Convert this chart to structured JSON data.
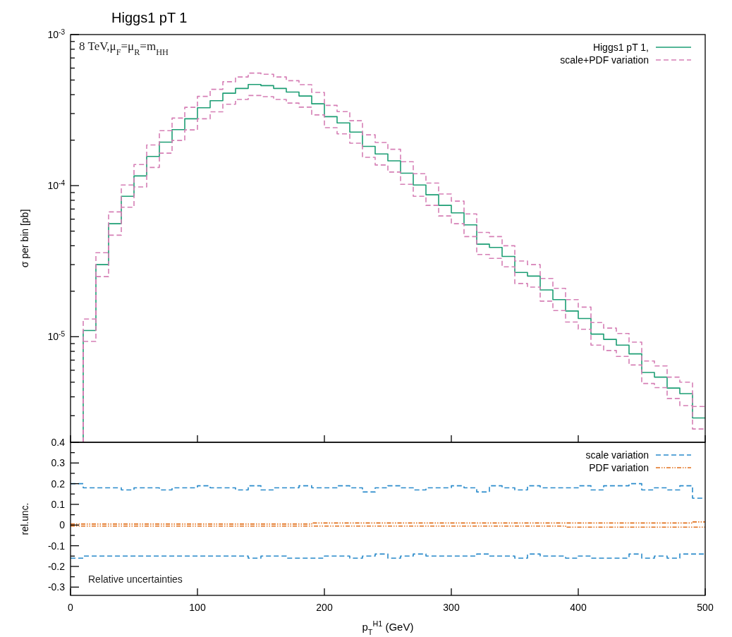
{
  "chart_data": [
    {
      "type": "histogram",
      "title": "Higgs1 pT 1",
      "ylabel": "σ per bin [pb]",
      "log": "y",
      "legend": "top right",
      "tick_labels": "y",
      "annotations": [
        "8 TeV,μ$_{F}$=μ$_{R}$=m$_{HH}$"
      ],
      "xlim": [
        0,
        500
      ],
      "xticks": [
        {
          "value": 0,
          "label": null
        },
        {
          "value": 100,
          "label": null
        },
        {
          "value": 200,
          "label": null
        },
        {
          "value": 300,
          "label": null
        },
        {
          "value": 400,
          "label": null
        },
        {
          "value": 500,
          "label": null
        }
      ],
      "ylim": [
        2e-06,
        0.001
      ],
      "yticks": [
        {
          "value": 3e-06,
          "label": null
        },
        {
          "value": 4e-06,
          "label": null
        },
        {
          "value": 5e-06,
          "label": null
        },
        {
          "value": 6e-06,
          "label": null
        },
        {
          "value": 7e-06,
          "label": null
        },
        {
          "value": 8e-06,
          "label": null
        },
        {
          "value": 9e-06,
          "label": null
        },
        {
          "value": 1e-05,
          "label": "10$^{-5}$"
        },
        {
          "value": 2e-05,
          "label": null
        },
        {
          "value": 3e-05,
          "label": null
        },
        {
          "value": 4e-05,
          "label": null
        },
        {
          "value": 5e-05,
          "label": null
        },
        {
          "value": 6e-05,
          "label": null
        },
        {
          "value": 7e-05,
          "label": null
        },
        {
          "value": 8e-05,
          "label": null
        },
        {
          "value": 9e-05,
          "label": null
        },
        {
          "value": 0.0001,
          "label": "10$^{-4}$"
        },
        {
          "value": 0.0002,
          "label": null
        },
        {
          "value": 0.0003,
          "label": null
        },
        {
          "value": 0.0004,
          "label": null
        },
        {
          "value": 0.0005,
          "label": null
        },
        {
          "value": 0.0006,
          "label": null
        },
        {
          "value": 0.0007,
          "label": null
        },
        {
          "value": 0.0008,
          "label": null
        },
        {
          "value": 0.0009,
          "label": null
        },
        {
          "value": 0.001,
          "label": "10$^{-3}$"
        }
      ],
      "bins": [
        10,
        20,
        30,
        40,
        50,
        60,
        70,
        80,
        90,
        100,
        110,
        120,
        130,
        140,
        150,
        160,
        170,
        180,
        190,
        200,
        210,
        220,
        230,
        240,
        250,
        260,
        270,
        280,
        290,
        300,
        310,
        320,
        330,
        340,
        350,
        360,
        370,
        380,
        390,
        400,
        410,
        420,
        430,
        440,
        450,
        460,
        470,
        480,
        490,
        500
      ],
      "series": [
        {
          "name": "Higgs1 pT 1,",
          "color": "#1d9e74",
          "line_style": "solid",
          "values": [
            1.1e-05,
            3e-05,
            5.6e-05,
            8.5e-05,
            0.000116,
            0.000156,
            0.000194,
            0.000235,
            0.000277,
            0.000328,
            0.000365,
            0.000409,
            0.00044,
            0.000467,
            0.000459,
            0.00044,
            0.000416,
            0.000392,
            0.000348,
            0.000286,
            0.00026,
            0.000226,
            0.000182,
            0.000162,
            0.000146,
            0.000121,
            0.000101,
            8.7e-05,
            7.4e-05,
            6.6e-05,
            5.5e-05,
            4.1e-05,
            3.9e-05,
            3.4e-05,
            2.66e-05,
            2.52e-05,
            2.04e-05,
            1.76e-05,
            1.48e-05,
            1.32e-05,
            1.04e-05,
            9.6e-06,
            8.8e-06,
            7.7e-06,
            5.8e-06,
            5.4e-06,
            4.57e-06,
            4.2e-06,
            2.9e-06
          ]
        },
        {
          "name": "scale+PDF variation",
          "color": "#d67fb6",
          "line_style": "dashed",
          "values": [
            1.31e-05,
            3.6e-05,
            6.7e-05,
            0.000101,
            0.000138,
            0.000186,
            0.000231,
            0.00028,
            0.00033,
            0.00039,
            0.000434,
            0.000487,
            0.000524,
            0.000556,
            0.000546,
            0.000524,
            0.000495,
            0.000466,
            0.000414,
            0.00034,
            0.000309,
            0.000269,
            0.000217,
            0.000193,
            0.000174,
            0.000144,
            0.00012,
            0.000104,
            8.8e-05,
            7.9e-05,
            6.5e-05,
            4.9e-05,
            4.6e-05,
            4e-05,
            3.17e-05,
            3e-05,
            2.43e-05,
            2.09e-05,
            1.76e-05,
            1.57e-05,
            1.24e-05,
            1.14e-05,
            1.05e-05,
            9.2e-06,
            6.9e-06,
            6.4e-06,
            5.4e-06,
            5e-06,
            3.45e-06
          ]
        },
        {
          "color": "#d57fb5",
          "line_style": "dashed",
          "values": [
            9.3e-06,
            2.5e-05,
            4.7e-05,
            7.2e-05,
            9.8e-05,
            0.000132,
            0.000164,
            0.000199,
            0.000234,
            0.000277,
            0.000308,
            0.000346,
            0.000372,
            0.000395,
            0.000388,
            0.000372,
            0.000352,
            0.000331,
            0.000294,
            0.000242,
            0.00022,
            0.000191,
            0.000154,
            0.000137,
            0.000123,
            0.000102,
            8.5e-05,
            7.4e-05,
            6.3e-05,
            5.6e-05,
            4.6e-05,
            3.5e-05,
            3.3e-05,
            2.9e-05,
            2.25e-05,
            2.13e-05,
            1.72e-05,
            1.49e-05,
            1.25e-05,
            1.12e-05,
            8.8e-06,
            8.1e-06,
            7.4e-06,
            6.5e-06,
            4.9e-06,
            4.6e-06,
            3.9e-06,
            3.5e-06,
            2.45e-06
          ]
        }
      ]
    },
    {
      "type": "histogram",
      "xlabel": "p$_{T}$$^{H1}$ (GeV)",
      "ylabel": "rel.unc.",
      "legend": "top right",
      "annotations": [
        "Relative uncertainties"
      ],
      "xlim": [
        0,
        500
      ],
      "xticks": [
        0,
        100,
        200,
        300,
        400,
        500
      ],
      "ylim": [
        -0.34,
        0.4
      ],
      "yticks": [
        -0.3,
        {
          "value": -0.25,
          "label": null
        },
        -0.2,
        {
          "value": -0.15,
          "label": null
        },
        -0.1,
        {
          "value": -0.05,
          "label": null
        },
        0,
        {
          "value": 0.05,
          "label": null
        },
        0.1,
        {
          "value": 0.15,
          "label": null
        },
        0.2,
        {
          "value": 0.25,
          "label": null
        },
        0.3,
        {
          "value": 0.35,
          "label": null
        },
        0.4
      ],
      "bins": [
        0,
        10,
        20,
        30,
        40,
        50,
        60,
        70,
        80,
        90,
        100,
        110,
        120,
        130,
        140,
        150,
        160,
        170,
        180,
        190,
        200,
        210,
        220,
        230,
        240,
        250,
        260,
        270,
        280,
        290,
        300,
        310,
        320,
        330,
        340,
        350,
        360,
        370,
        380,
        390,
        400,
        410,
        420,
        430,
        440,
        450,
        460,
        470,
        480,
        490,
        500
      ],
      "series": [
        {
          "name": "scale variation",
          "color": "#2a8bcb",
          "line_style": "dashed",
          "values": [
            0.2,
            0.18,
            0.18,
            0.18,
            0.17,
            0.18,
            0.18,
            0.17,
            0.18,
            0.18,
            0.19,
            0.18,
            0.18,
            0.17,
            0.19,
            0.17,
            0.18,
            0.18,
            0.19,
            0.18,
            0.18,
            0.19,
            0.18,
            0.16,
            0.18,
            0.19,
            0.18,
            0.17,
            0.18,
            0.18,
            0.19,
            0.18,
            0.16,
            0.19,
            0.18,
            0.17,
            0.19,
            0.18,
            0.18,
            0.18,
            0.19,
            0.17,
            0.19,
            0.19,
            0.2,
            0.17,
            0.18,
            0.17,
            0.19,
            0.13
          ]
        },
        {
          "color": "#298aca",
          "line_style": "dashed",
          "values": [
            -0.16,
            -0.15,
            -0.15,
            -0.15,
            -0.15,
            -0.15,
            -0.15,
            -0.15,
            -0.15,
            -0.15,
            -0.15,
            -0.15,
            -0.15,
            -0.15,
            -0.16,
            -0.15,
            -0.15,
            -0.16,
            -0.16,
            -0.16,
            -0.15,
            -0.15,
            -0.16,
            -0.15,
            -0.14,
            -0.16,
            -0.15,
            -0.14,
            -0.15,
            -0.15,
            -0.15,
            -0.15,
            -0.14,
            -0.15,
            -0.15,
            -0.16,
            -0.14,
            -0.15,
            -0.15,
            -0.16,
            -0.15,
            -0.16,
            -0.16,
            -0.16,
            -0.14,
            -0.16,
            -0.15,
            -0.16,
            -0.14,
            -0.14
          ]
        },
        {
          "name": "PDF variation",
          "color": "#e2711d",
          "line_style": "dotted",
          "values": [
            0.005,
            0.005,
            0.005,
            0.005,
            0.005,
            0.005,
            0.005,
            0.005,
            0.005,
            0.005,
            0.005,
            0.005,
            0.005,
            0.005,
            0.005,
            0.005,
            0.005,
            0.005,
            0.005,
            0.01,
            0.01,
            0.01,
            0.01,
            0.01,
            0.01,
            0.01,
            0.01,
            0.01,
            0.01,
            0.01,
            0.01,
            0.01,
            0.01,
            0.01,
            0.01,
            0.01,
            0.01,
            0.01,
            0.01,
            0.01,
            0.01,
            0.01,
            0.01,
            0.01,
            0.01,
            0.01,
            0.01,
            0.01,
            0.01,
            0.015
          ]
        },
        {
          "color": "#e1701c",
          "line_style": "dotted",
          "values": [
            -0.005,
            -0.005,
            -0.005,
            -0.005,
            -0.005,
            -0.005,
            -0.005,
            -0.005,
            -0.005,
            -0.005,
            -0.005,
            -0.005,
            -0.005,
            -0.005,
            -0.005,
            -0.005,
            -0.005,
            -0.005,
            -0.005,
            -0.005,
            -0.005,
            -0.005,
            -0.005,
            -0.005,
            -0.005,
            -0.005,
            -0.005,
            -0.005,
            -0.005,
            -0.005,
            -0.005,
            -0.005,
            -0.005,
            -0.005,
            -0.005,
            -0.005,
            -0.005,
            -0.005,
            -0.005,
            -0.01,
            -0.01,
            -0.01,
            -0.01,
            -0.01,
            -0.01,
            -0.01,
            -0.01,
            -0.01,
            -0.01,
            -0.01
          ]
        }
      ]
    }
  ]
}
